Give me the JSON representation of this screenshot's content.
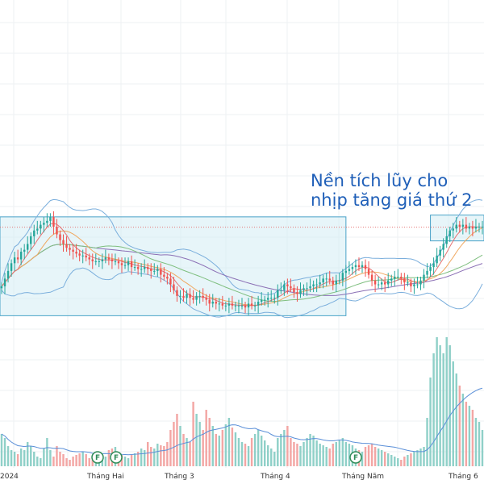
{
  "colors": {
    "up": "#26a69a",
    "down": "#ef5350",
    "up_volume": "#8fd0c8",
    "down_volume": "#f3a6a4",
    "box_fill": "#d3ecf4",
    "box_stroke": "#4aa3c8",
    "bollinger": "#7aaedc",
    "ma_short": "#e57373",
    "ma_mid": "#f0a860",
    "ma_long": "#7fbf7f",
    "ma_base": "#8b6fb5",
    "annotation": "#1f5fb8",
    "resistance": "#e57373",
    "flag": "#2e8b57",
    "volume_ma": "#5a8fd8"
  },
  "annotation": {
    "line1": "Nền tích lũy cho",
    "line2": "nhịp tăng giá thứ 2"
  },
  "x_axis": {
    "labels": [
      "2024",
      "Tháng Hai",
      "Tháng 3",
      "Tháng 4",
      "Tháng Năm",
      "Tháng 6"
    ]
  },
  "flags": [
    {
      "label": "F",
      "icon": "earnings-flag-icon"
    },
    {
      "label": "F",
      "icon": "earnings-flag-icon"
    },
    {
      "label": "F",
      "icon": "earnings-flag-icon"
    }
  ],
  "chart_data": {
    "type": "candlestick",
    "x": [
      0,
      1,
      2,
      3,
      4,
      5,
      6,
      7,
      8,
      9,
      10,
      11,
      12,
      13,
      14,
      15,
      16,
      17,
      18,
      19,
      20,
      21,
      22,
      23,
      24,
      25,
      26,
      27,
      28,
      29,
      30,
      31,
      32,
      33,
      34,
      35,
      36,
      37,
      38,
      39,
      40,
      41,
      42,
      43,
      44,
      45,
      46,
      47,
      48,
      49,
      50,
      51,
      52,
      53,
      54,
      55,
      56,
      57,
      58,
      59,
      60,
      61,
      62,
      63,
      64,
      65,
      66,
      67,
      68,
      69,
      70,
      71,
      72,
      73,
      74,
      75,
      76,
      77,
      78,
      79,
      80,
      81,
      82,
      83,
      84,
      85,
      86,
      87,
      88,
      89,
      90,
      91,
      92,
      93,
      94,
      95,
      96,
      97,
      98,
      99,
      100,
      101,
      102,
      103,
      104,
      105,
      106,
      107,
      108,
      109,
      110,
      111,
      112,
      113,
      114,
      115,
      116,
      117,
      118,
      119,
      120,
      121,
      122,
      123,
      124,
      125,
      126,
      127,
      128,
      129,
      130,
      131,
      132,
      133,
      134,
      135,
      136,
      137,
      138,
      139,
      140,
      141,
      142,
      143,
      144,
      145,
      146,
      147,
      148
    ],
    "close": [
      66,
      70,
      74,
      78,
      81,
      80,
      84,
      85,
      88,
      92,
      95,
      96,
      98,
      99,
      100,
      102,
      97,
      93,
      90,
      88,
      86,
      85,
      84,
      83,
      82,
      82,
      81,
      80,
      79,
      79,
      79,
      80,
      81,
      80,
      79,
      79,
      78,
      77,
      77,
      79,
      76,
      76,
      75,
      75,
      76,
      75,
      74,
      74,
      75,
      72,
      71,
      70,
      67,
      64,
      61,
      61,
      60,
      62,
      60,
      59,
      61,
      61,
      60,
      59,
      57,
      58,
      57,
      57,
      56,
      56,
      57,
      56,
      56,
      56,
      56,
      55,
      57,
      56,
      56,
      58,
      59,
      59,
      60,
      60,
      60,
      64,
      64,
      67,
      66,
      65,
      63,
      62,
      64,
      65,
      65,
      66,
      67,
      67,
      68,
      70,
      70,
      69,
      67,
      69,
      69,
      73,
      74,
      75,
      76,
      77,
      76,
      77,
      75,
      72,
      69,
      67,
      67,
      68,
      67,
      69,
      70,
      71,
      71,
      70,
      68,
      68,
      66,
      67,
      67,
      69,
      72,
      74,
      76,
      78,
      82,
      85,
      88,
      92,
      95,
      96,
      98,
      97,
      98,
      96,
      97,
      96,
      97,
      97,
      97
    ],
    "volume": [
      40,
      35,
      25,
      20,
      18,
      15,
      22,
      20,
      30,
      25,
      18,
      12,
      10,
      22,
      35,
      20,
      12,
      25,
      18,
      15,
      10,
      8,
      12,
      14,
      16,
      18,
      15,
      10,
      8,
      12,
      18,
      14,
      12,
      20,
      22,
      24,
      16,
      14,
      12,
      10,
      14,
      16,
      18,
      22,
      20,
      30,
      24,
      22,
      28,
      26,
      25,
      30,
      45,
      55,
      65,
      50,
      40,
      35,
      30,
      80,
      65,
      55,
      45,
      70,
      60,
      50,
      40,
      38,
      45,
      52,
      60,
      48,
      42,
      35,
      30,
      28,
      25,
      35,
      40,
      45,
      38,
      32,
      26,
      22,
      18,
      35,
      40,
      45,
      50,
      35,
      30,
      28,
      25,
      30,
      35,
      40,
      38,
      32,
      28,
      26,
      24,
      22,
      28,
      30,
      32,
      35,
      30,
      28,
      26,
      22,
      20,
      18,
      24,
      26,
      28,
      24,
      22,
      20,
      18,
      16,
      14,
      12,
      10,
      8,
      12,
      14,
      16,
      18,
      20,
      22,
      24,
      60,
      110,
      140,
      160,
      150,
      140,
      160,
      150,
      130,
      115,
      100,
      90,
      80,
      75,
      70,
      60,
      55,
      45
    ],
    "annotation_text": [
      "Nền tích lũy cho",
      "nhịp tăng giá thứ 2"
    ],
    "resistance_level": 98,
    "accumulation_range": [
      57,
      100
    ]
  }
}
